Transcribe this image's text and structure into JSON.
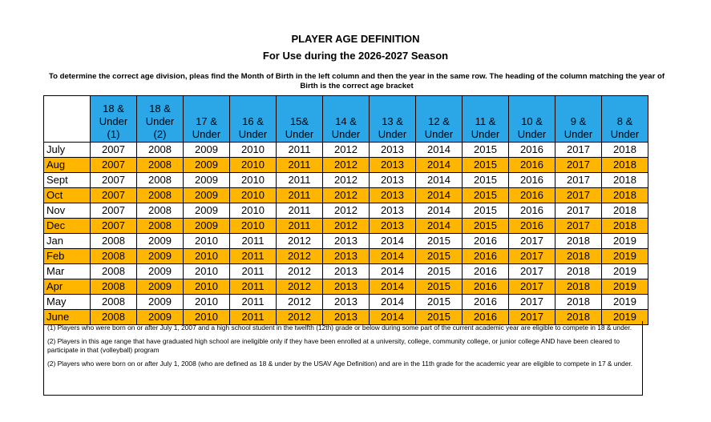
{
  "title": "PLAYER AGE DEFINITION",
  "subtitle": "For Use during the 2026-2027 Season",
  "instructions": "To determine the correct age division, pleas find the Month of Birth in the left column and then the year in the same row. The heading of the column matching the year of Birth is the correct age bracket",
  "colors": {
    "header_bg": "#2ba6e6",
    "highlight_row": "#ffb600"
  },
  "headers": [
    [
      "18 &",
      "Under",
      "(1)"
    ],
    [
      "18 &",
      "Under",
      "(2)"
    ],
    [
      "17 &",
      "Under"
    ],
    [
      "16 &",
      "Under"
    ],
    [
      "15&",
      "Under"
    ],
    [
      "14 &",
      "Under"
    ],
    [
      "13 &",
      "Under"
    ],
    [
      "12 &",
      "Under"
    ],
    [
      "11 &",
      "Under"
    ],
    [
      "10 &",
      "Under"
    ],
    [
      "9 &",
      "Under"
    ],
    [
      "8 &",
      "Under"
    ]
  ],
  "rows": [
    {
      "month": "July",
      "highlight": false,
      "years": [
        "2007",
        "2008",
        "2009",
        "2010",
        "2011",
        "2012",
        "2013",
        "2014",
        "2015",
        "2016",
        "2017",
        "2018"
      ]
    },
    {
      "month": "Aug",
      "highlight": true,
      "years": [
        "2007",
        "2008",
        "2009",
        "2010",
        "2011",
        "2012",
        "2013",
        "2014",
        "2015",
        "2016",
        "2017",
        "2018"
      ]
    },
    {
      "month": "Sept",
      "highlight": false,
      "years": [
        "2007",
        "2008",
        "2009",
        "2010",
        "2011",
        "2012",
        "2013",
        "2014",
        "2015",
        "2016",
        "2017",
        "2018"
      ]
    },
    {
      "month": "Oct",
      "highlight": true,
      "years": [
        "2007",
        "2008",
        "2009",
        "2010",
        "2011",
        "2012",
        "2013",
        "2014",
        "2015",
        "2016",
        "2017",
        "2018"
      ]
    },
    {
      "month": "Nov",
      "highlight": false,
      "years": [
        "2007",
        "2008",
        "2009",
        "2010",
        "2011",
        "2012",
        "2013",
        "2014",
        "2015",
        "2016",
        "2017",
        "2018"
      ]
    },
    {
      "month": "Dec",
      "highlight": true,
      "years": [
        "2007",
        "2008",
        "2009",
        "2010",
        "2011",
        "2012",
        "2013",
        "2014",
        "2015",
        "2016",
        "2017",
        "2018"
      ]
    },
    {
      "month": "Jan",
      "highlight": false,
      "years": [
        "2008",
        "2009",
        "2010",
        "2011",
        "2012",
        "2013",
        "2014",
        "2015",
        "2016",
        "2017",
        "2018",
        "2019"
      ]
    },
    {
      "month": "Feb",
      "highlight": true,
      "years": [
        "2008",
        "2009",
        "2010",
        "2011",
        "2012",
        "2013",
        "2014",
        "2015",
        "2016",
        "2017",
        "2018",
        "2019"
      ]
    },
    {
      "month": "Mar",
      "highlight": false,
      "years": [
        "2008",
        "2009",
        "2010",
        "2011",
        "2012",
        "2013",
        "2014",
        "2015",
        "2016",
        "2017",
        "2018",
        "2019"
      ]
    },
    {
      "month": "Apr",
      "highlight": true,
      "years": [
        "2008",
        "2009",
        "2010",
        "2011",
        "2012",
        "2013",
        "2014",
        "2015",
        "2016",
        "2017",
        "2018",
        "2019"
      ]
    },
    {
      "month": "May",
      "highlight": false,
      "years": [
        "2008",
        "2009",
        "2010",
        "2011",
        "2012",
        "2013",
        "2014",
        "2015",
        "2016",
        "2017",
        "2018",
        "2019"
      ]
    },
    {
      "month": "June",
      "highlight": true,
      "years": [
        "2008",
        "2009",
        "2010",
        "2011",
        "2012",
        "2013",
        "2014",
        "2015",
        "2016",
        "2017",
        "2018",
        "2019"
      ]
    }
  ],
  "footnotes": [
    "(1) Players who were born on or after July 1, 2007 and a high school student in the twelfth (12th) grade or below during some part of the current academic year are eligible to compete in 18 & under.",
    "(2) Players in this age range that have graduated high school are ineligible only if they have been enrolled at a university, college, community college, or junior college AND have been cleared to participate in that (volleyball) program",
    "(2) Players who were born on or after July 1, 2008 (who are defined as 18 & under by the USAV Age Definition) and are in the 11th grade for the academic year are eligible to compete in 17 & under."
  ]
}
